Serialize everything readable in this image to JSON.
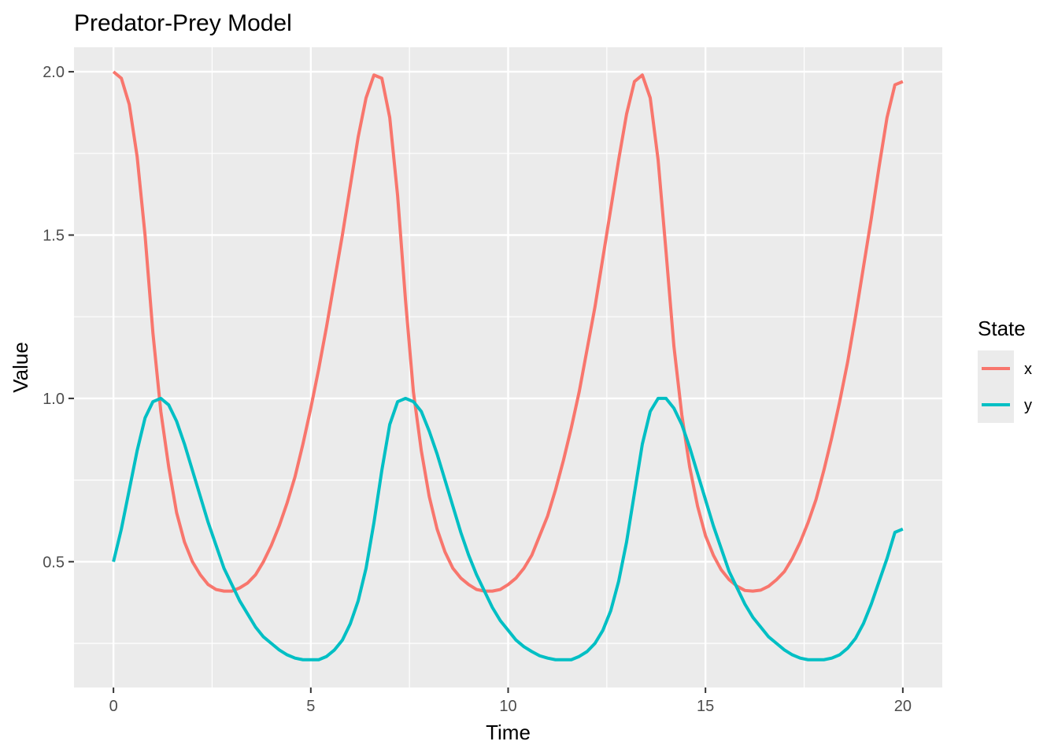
{
  "chart_data": {
    "type": "line",
    "title": "Predator-Prey Model",
    "xlabel": "Time",
    "ylabel": "Value",
    "xlim": [
      -1,
      21
    ],
    "ylim": [
      0.115,
      2.075
    ],
    "x_ticks": [
      0,
      5,
      10,
      15,
      20
    ],
    "x_tick_labels": [
      "0",
      "5",
      "10",
      "15",
      "20"
    ],
    "y_ticks": [
      0.5,
      1.0,
      1.5,
      2.0
    ],
    "y_tick_labels": [
      "0.5",
      "1.0",
      "1.5",
      "2.0"
    ],
    "x_minor_ticks": [
      2.5,
      7.5,
      12.5,
      17.5
    ],
    "y_minor_ticks": [
      0.25,
      0.75,
      1.25,
      1.75
    ],
    "grid": true,
    "legend": {
      "title": "State",
      "position": "right"
    },
    "series": [
      {
        "name": "x",
        "color": "#F8766D",
        "points": [
          [
            0,
            2.0
          ],
          [
            0.2,
            1.98
          ],
          [
            0.4,
            1.9
          ],
          [
            0.6,
            1.74
          ],
          [
            0.8,
            1.5
          ],
          [
            1.0,
            1.2
          ],
          [
            1.2,
            0.96
          ],
          [
            1.4,
            0.79
          ],
          [
            1.6,
            0.65
          ],
          [
            1.8,
            0.56
          ],
          [
            2.0,
            0.5
          ],
          [
            2.2,
            0.46
          ],
          [
            2.4,
            0.43
          ],
          [
            2.6,
            0.415
          ],
          [
            2.8,
            0.41
          ],
          [
            3.0,
            0.41
          ],
          [
            3.2,
            0.42
          ],
          [
            3.4,
            0.435
          ],
          [
            3.6,
            0.46
          ],
          [
            3.8,
            0.5
          ],
          [
            4.0,
            0.55
          ],
          [
            4.2,
            0.61
          ],
          [
            4.4,
            0.68
          ],
          [
            4.6,
            0.76
          ],
          [
            4.8,
            0.86
          ],
          [
            5.0,
            0.97
          ],
          [
            5.2,
            1.09
          ],
          [
            5.4,
            1.22
          ],
          [
            5.6,
            1.36
          ],
          [
            5.8,
            1.5
          ],
          [
            6.0,
            1.65
          ],
          [
            6.2,
            1.8
          ],
          [
            6.4,
            1.92
          ],
          [
            6.6,
            1.99
          ],
          [
            6.8,
            1.98
          ],
          [
            7.0,
            1.86
          ],
          [
            7.2,
            1.62
          ],
          [
            7.4,
            1.3
          ],
          [
            7.6,
            1.02
          ],
          [
            7.8,
            0.84
          ],
          [
            8.0,
            0.7
          ],
          [
            8.2,
            0.6
          ],
          [
            8.4,
            0.53
          ],
          [
            8.6,
            0.48
          ],
          [
            8.8,
            0.45
          ],
          [
            9.0,
            0.43
          ],
          [
            9.2,
            0.415
          ],
          [
            9.4,
            0.41
          ],
          [
            9.6,
            0.41
          ],
          [
            9.8,
            0.415
          ],
          [
            10.0,
            0.43
          ],
          [
            10.2,
            0.45
          ],
          [
            10.4,
            0.48
          ],
          [
            10.6,
            0.52
          ],
          [
            10.8,
            0.58
          ],
          [
            11.0,
            0.64
          ],
          [
            11.2,
            0.72
          ],
          [
            11.4,
            0.81
          ],
          [
            11.6,
            0.91
          ],
          [
            11.8,
            1.02
          ],
          [
            12.0,
            1.15
          ],
          [
            12.2,
            1.28
          ],
          [
            12.4,
            1.43
          ],
          [
            12.6,
            1.58
          ],
          [
            12.8,
            1.73
          ],
          [
            13.0,
            1.87
          ],
          [
            13.2,
            1.97
          ],
          [
            13.4,
            1.99
          ],
          [
            13.6,
            1.92
          ],
          [
            13.8,
            1.73
          ],
          [
            14.0,
            1.45
          ],
          [
            14.2,
            1.16
          ],
          [
            14.4,
            0.95
          ],
          [
            14.6,
            0.79
          ],
          [
            14.8,
            0.67
          ],
          [
            15.0,
            0.58
          ],
          [
            15.2,
            0.52
          ],
          [
            15.4,
            0.475
          ],
          [
            15.6,
            0.445
          ],
          [
            15.8,
            0.425
          ],
          [
            16.0,
            0.412
          ],
          [
            16.2,
            0.41
          ],
          [
            16.4,
            0.413
          ],
          [
            16.6,
            0.425
          ],
          [
            16.8,
            0.445
          ],
          [
            17.0,
            0.47
          ],
          [
            17.2,
            0.51
          ],
          [
            17.4,
            0.56
          ],
          [
            17.6,
            0.62
          ],
          [
            17.8,
            0.69
          ],
          [
            18.0,
            0.78
          ],
          [
            18.2,
            0.88
          ],
          [
            18.4,
            0.99
          ],
          [
            18.6,
            1.11
          ],
          [
            18.8,
            1.25
          ],
          [
            19.0,
            1.4
          ],
          [
            19.2,
            1.55
          ],
          [
            19.4,
            1.71
          ],
          [
            19.6,
            1.86
          ],
          [
            19.8,
            1.96
          ],
          [
            20.0,
            1.97
          ]
        ]
      },
      {
        "name": "y",
        "color": "#00BFC4",
        "points": [
          [
            0,
            0.5
          ],
          [
            0.2,
            0.6
          ],
          [
            0.4,
            0.72
          ],
          [
            0.6,
            0.84
          ],
          [
            0.8,
            0.94
          ],
          [
            1.0,
            0.99
          ],
          [
            1.2,
            1.0
          ],
          [
            1.4,
            0.98
          ],
          [
            1.6,
            0.93
          ],
          [
            1.8,
            0.86
          ],
          [
            2.0,
            0.78
          ],
          [
            2.2,
            0.7
          ],
          [
            2.4,
            0.62
          ],
          [
            2.6,
            0.55
          ],
          [
            2.8,
            0.48
          ],
          [
            3.0,
            0.43
          ],
          [
            3.2,
            0.38
          ],
          [
            3.4,
            0.34
          ],
          [
            3.6,
            0.3
          ],
          [
            3.8,
            0.27
          ],
          [
            4.0,
            0.25
          ],
          [
            4.2,
            0.23
          ],
          [
            4.4,
            0.215
          ],
          [
            4.6,
            0.205
          ],
          [
            4.8,
            0.2
          ],
          [
            5.0,
            0.2
          ],
          [
            5.2,
            0.2
          ],
          [
            5.4,
            0.21
          ],
          [
            5.6,
            0.23
          ],
          [
            5.8,
            0.26
          ],
          [
            6.0,
            0.31
          ],
          [
            6.2,
            0.38
          ],
          [
            6.4,
            0.48
          ],
          [
            6.6,
            0.62
          ],
          [
            6.8,
            0.78
          ],
          [
            7.0,
            0.92
          ],
          [
            7.2,
            0.99
          ],
          [
            7.4,
            1.0
          ],
          [
            7.6,
            0.99
          ],
          [
            7.8,
            0.96
          ],
          [
            8.0,
            0.9
          ],
          [
            8.2,
            0.83
          ],
          [
            8.4,
            0.75
          ],
          [
            8.6,
            0.67
          ],
          [
            8.8,
            0.59
          ],
          [
            9.0,
            0.52
          ],
          [
            9.2,
            0.46
          ],
          [
            9.4,
            0.41
          ],
          [
            9.6,
            0.36
          ],
          [
            9.8,
            0.32
          ],
          [
            10.0,
            0.29
          ],
          [
            10.2,
            0.26
          ],
          [
            10.4,
            0.24
          ],
          [
            10.6,
            0.225
          ],
          [
            10.8,
            0.212
          ],
          [
            11.0,
            0.205
          ],
          [
            11.2,
            0.2
          ],
          [
            11.4,
            0.2
          ],
          [
            11.6,
            0.2
          ],
          [
            11.8,
            0.21
          ],
          [
            12.0,
            0.225
          ],
          [
            12.2,
            0.25
          ],
          [
            12.4,
            0.29
          ],
          [
            12.6,
            0.35
          ],
          [
            12.8,
            0.44
          ],
          [
            13.0,
            0.56
          ],
          [
            13.2,
            0.71
          ],
          [
            13.4,
            0.86
          ],
          [
            13.6,
            0.96
          ],
          [
            13.8,
            1.0
          ],
          [
            14.0,
            1.0
          ],
          [
            14.2,
            0.97
          ],
          [
            14.4,
            0.92
          ],
          [
            14.6,
            0.85
          ],
          [
            14.8,
            0.77
          ],
          [
            15.0,
            0.69
          ],
          [
            15.2,
            0.61
          ],
          [
            15.4,
            0.54
          ],
          [
            15.6,
            0.47
          ],
          [
            15.8,
            0.42
          ],
          [
            16.0,
            0.37
          ],
          [
            16.2,
            0.33
          ],
          [
            16.4,
            0.3
          ],
          [
            16.6,
            0.27
          ],
          [
            16.8,
            0.25
          ],
          [
            17.0,
            0.23
          ],
          [
            17.2,
            0.215
          ],
          [
            17.4,
            0.205
          ],
          [
            17.6,
            0.2
          ],
          [
            17.8,
            0.2
          ],
          [
            18.0,
            0.2
          ],
          [
            18.2,
            0.205
          ],
          [
            18.4,
            0.215
          ],
          [
            18.6,
            0.235
          ],
          [
            18.8,
            0.265
          ],
          [
            19.0,
            0.31
          ],
          [
            19.2,
            0.37
          ],
          [
            19.4,
            0.44
          ],
          [
            19.6,
            0.51
          ],
          [
            19.8,
            0.59
          ],
          [
            20.0,
            0.6
          ]
        ]
      }
    ]
  }
}
